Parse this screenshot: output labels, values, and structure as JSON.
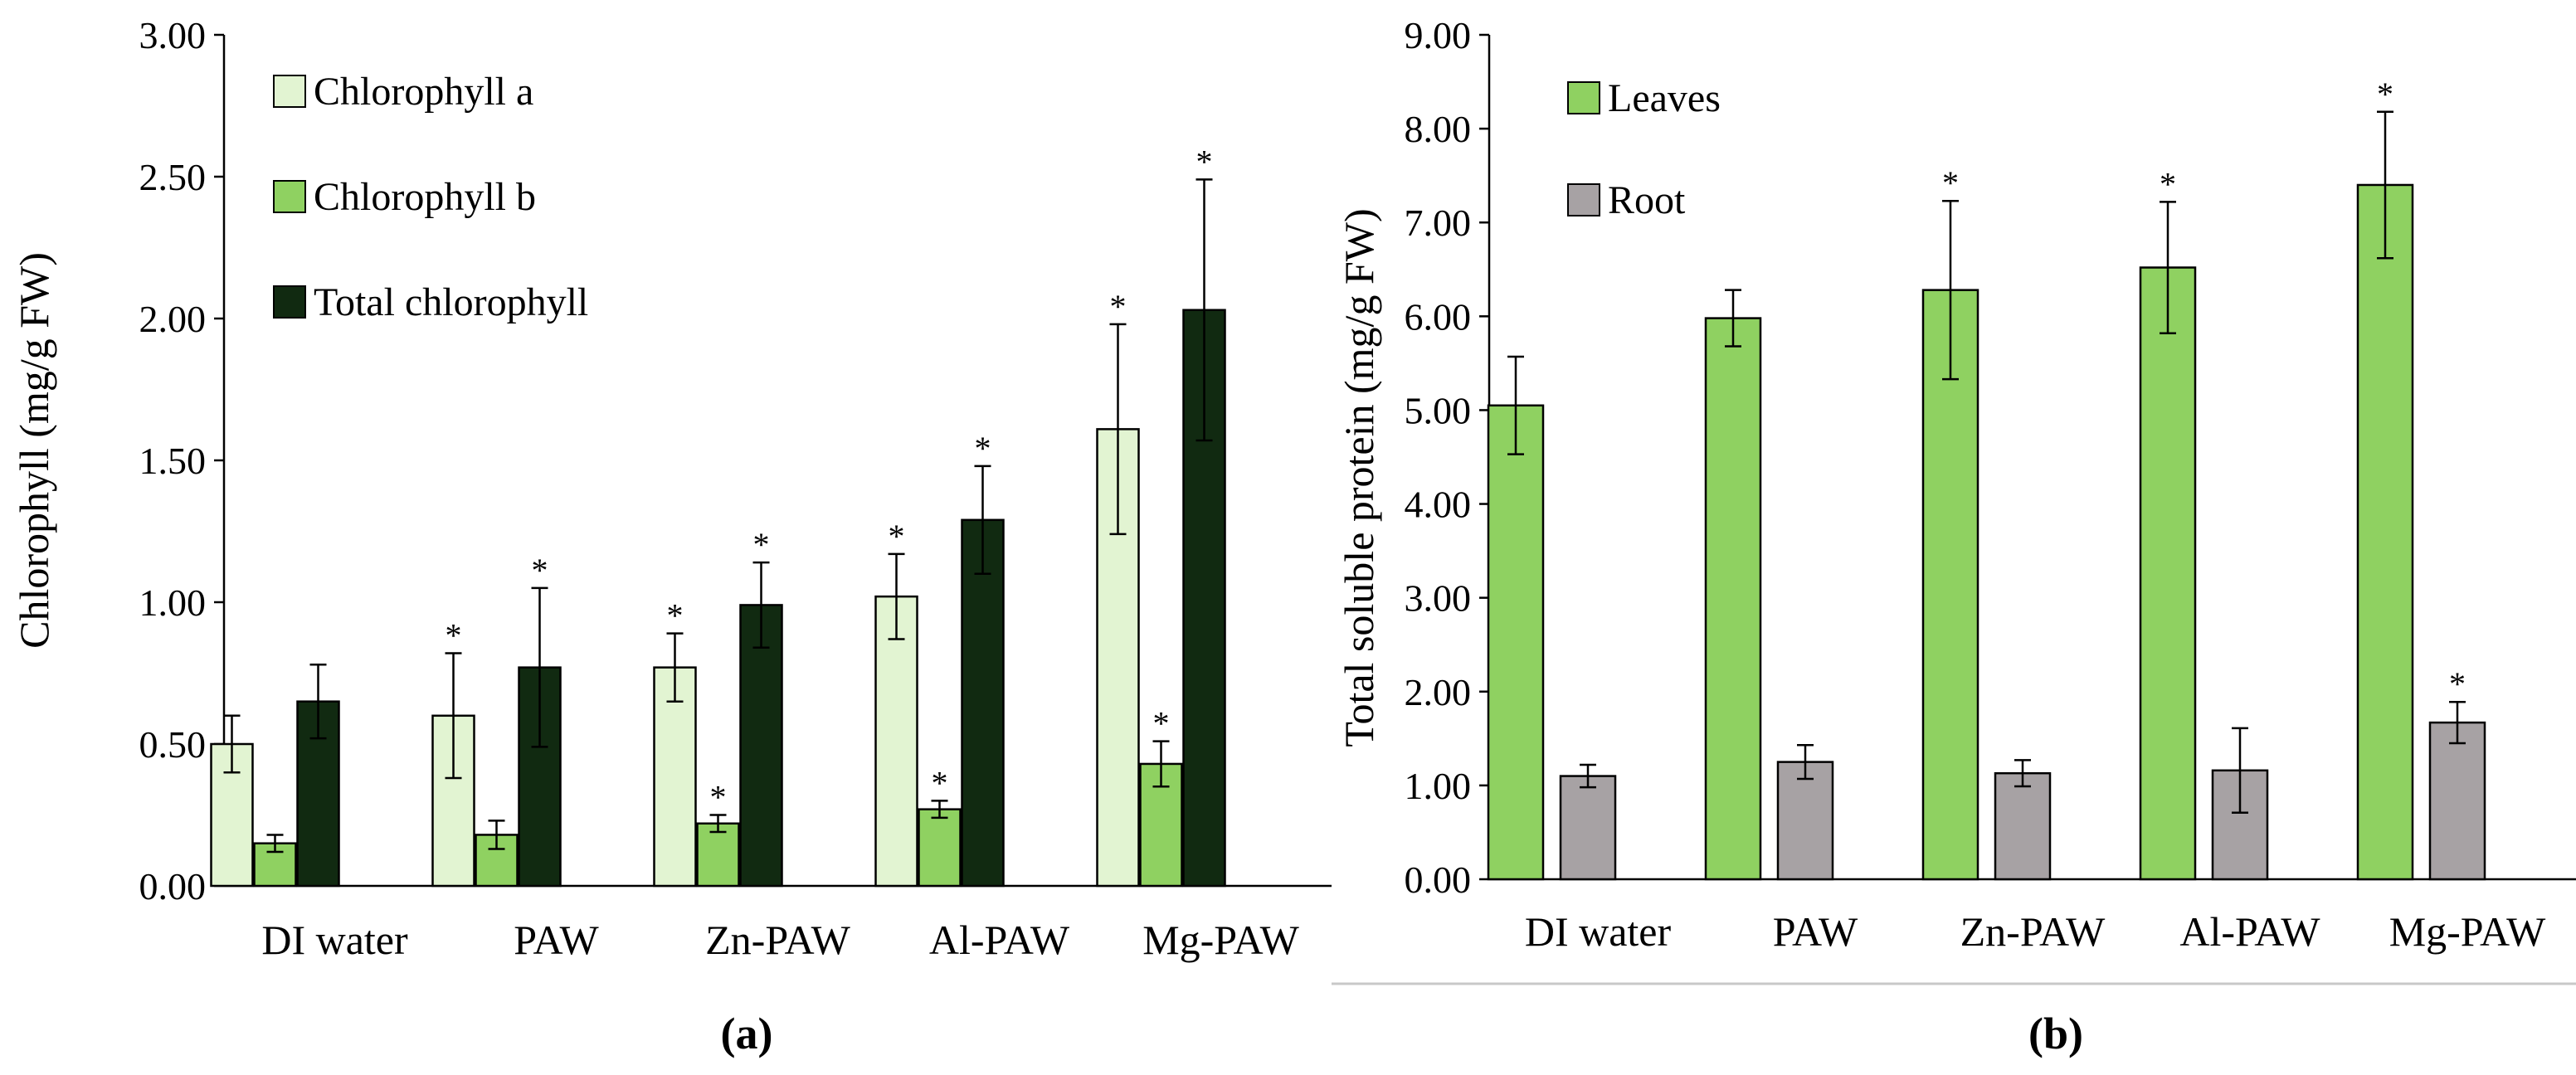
{
  "colors": {
    "chl_a": "#e2f4d2",
    "chl_b": "#8fd161",
    "total": "#112a11",
    "leaves": "#8fd161",
    "root": "#a7a2a4",
    "axis": "#000000",
    "separator": "#c8c8c8"
  },
  "chart_data": [
    {
      "type": "bar",
      "panel_label": "(a)",
      "ylabel": "Chlorophyll  (mg/g FW)",
      "ylim": [
        0,
        3
      ],
      "yticks": [
        0,
        0.5,
        1,
        1.5,
        2,
        2.5,
        3
      ],
      "ytick_labels": [
        "0.00",
        "0.50",
        "1.00",
        "1.50",
        "2.00",
        "2.50",
        "3.00"
      ],
      "categories": [
        "DI water",
        "PAW",
        "Zn-PAW",
        "Al-PAW",
        "Mg-PAW"
      ],
      "legend_position": "top-left",
      "series": [
        {
          "name": "Chlorophyll a",
          "color_key": "chl_a",
          "values": [
            0.5,
            0.6,
            0.77,
            1.02,
            1.61
          ],
          "errors": [
            0.1,
            0.22,
            0.12,
            0.15,
            0.37
          ],
          "significant": [
            false,
            true,
            true,
            true,
            true
          ]
        },
        {
          "name": "Chlorophyll b",
          "color_key": "chl_b",
          "values": [
            0.15,
            0.18,
            0.22,
            0.27,
            0.43
          ],
          "errors": [
            0.03,
            0.05,
            0.03,
            0.03,
            0.08
          ],
          "significant": [
            false,
            false,
            true,
            true,
            true
          ]
        },
        {
          "name": "Total chlorophyll",
          "color_key": "total",
          "values": [
            0.65,
            0.77,
            0.99,
            1.29,
            2.03
          ],
          "errors": [
            0.13,
            0.28,
            0.15,
            0.19,
            0.46
          ],
          "significant": [
            false,
            true,
            true,
            true,
            true
          ]
        }
      ]
    },
    {
      "type": "bar",
      "panel_label": "(b)",
      "ylabel": "Total soluble protein (mg/g FW)",
      "ylim": [
        0,
        9
      ],
      "yticks": [
        0,
        1,
        2,
        3,
        4,
        5,
        6,
        7,
        8,
        9
      ],
      "ytick_labels": [
        "0.00",
        "1.00",
        "2.00",
        "3.00",
        "4.00",
        "5.00",
        "6.00",
        "7.00",
        "8.00",
        "9.00"
      ],
      "categories": [
        "DI water",
        "PAW",
        "Zn-PAW",
        "Al-PAW",
        "Mg-PAW"
      ],
      "legend_position": "top-left",
      "series": [
        {
          "name": "Leaves",
          "color_key": "leaves",
          "values": [
            5.05,
            5.98,
            6.28,
            6.52,
            7.4
          ],
          "errors": [
            0.52,
            0.3,
            0.95,
            0.7,
            0.78
          ],
          "significant": [
            false,
            false,
            true,
            true,
            true
          ]
        },
        {
          "name": "Root",
          "color_key": "root",
          "values": [
            1.1,
            1.25,
            1.13,
            1.16,
            1.67
          ],
          "errors": [
            0.12,
            0.18,
            0.14,
            0.45,
            0.22
          ],
          "significant": [
            false,
            false,
            false,
            false,
            true
          ]
        }
      ]
    }
  ]
}
